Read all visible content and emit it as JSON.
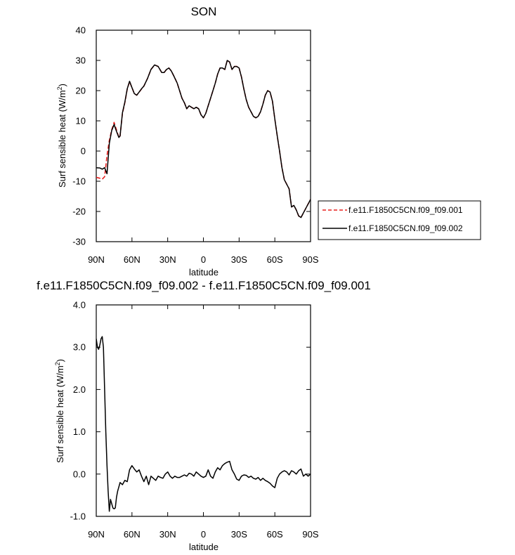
{
  "chart_data": [
    {
      "type": "line",
      "title": "SON",
      "xlabel": "latitude",
      "ylabel": "Surf sensible heat (W/m",
      "ylabel_sup": "2",
      "ylabel_tail": ")",
      "xlim": [
        90,
        -90
      ],
      "ylim": [
        -30,
        40
      ],
      "x_ticks": [
        90,
        60,
        30,
        0,
        -30,
        -60,
        -90
      ],
      "x_tick_labels": [
        "90N",
        "60N",
        "30N",
        "0",
        "30S",
        "60S",
        "90S"
      ],
      "y_ticks": [
        -30,
        -20,
        -10,
        0,
        10,
        20,
        30,
        40
      ],
      "y_tick_labels": [
        "-30",
        "-20",
        "-10",
        "0",
        "10",
        "20",
        "30",
        "40"
      ],
      "legend_position": "right",
      "series": [
        {
          "name": "f.e11.F1850C5CN.f09_f09.001",
          "color": "#e8201e",
          "dash": "dashed",
          "x": [
            90,
            87,
            85,
            83,
            81,
            79,
            77,
            75,
            73,
            71,
            70,
            68,
            66,
            64,
            62,
            60,
            58,
            56,
            54,
            52,
            50,
            47,
            44,
            41,
            38,
            35,
            33,
            31,
            29,
            27,
            25,
            22,
            20,
            18,
            16,
            14,
            12,
            10,
            8,
            6,
            4,
            2,
            0,
            -2,
            -4,
            -6,
            -8,
            -10,
            -12,
            -14,
            -16,
            -18,
            -20,
            -22,
            -24,
            -26,
            -28,
            -30,
            -32,
            -34,
            -36,
            -38,
            -40,
            -42,
            -44,
            -46,
            -48,
            -50,
            -52,
            -54,
            -56,
            -58,
            -60,
            -62,
            -64,
            -66,
            -68,
            -70,
            -72,
            -74,
            -76,
            -78,
            -80,
            -82,
            -84,
            -86,
            -88,
            -90
          ],
          "y": [
            -8.7,
            -9.0,
            -9.3,
            -8.5,
            -1.5,
            3.5,
            7.0,
            9.5,
            7.0,
            4.5,
            5.0,
            12.5,
            16.0,
            20.5,
            23.0,
            21.0,
            19.0,
            18.5,
            19.5,
            20.5,
            21.5,
            24.0,
            27.0,
            28.5,
            28.0,
            26.0,
            26.0,
            27.0,
            27.5,
            26.5,
            25.0,
            22.5,
            20.0,
            17.5,
            16.0,
            14.0,
            15.0,
            14.5,
            14.0,
            14.5,
            14.0,
            12.0,
            11.0,
            12.5,
            15.0,
            17.5,
            20.0,
            22.5,
            25.5,
            27.5,
            27.5,
            27.0,
            30.0,
            29.5,
            27.0,
            28.0,
            28.0,
            27.5,
            24.5,
            20.5,
            17.0,
            14.5,
            13.0,
            11.5,
            11.0,
            11.5,
            13.0,
            15.5,
            18.5,
            20.0,
            19.5,
            16.5,
            10.5,
            5.0,
            0.0,
            -5.5,
            -9.5,
            -11.0,
            -12.5,
            -18.5,
            -18.0,
            -19.5,
            -21.5,
            -22.0,
            -20.5,
            -19.0,
            -17.5,
            -16.0
          ]
        },
        {
          "name": "f.e11.F1850C5CN.f09_f09.002",
          "color": "#000000",
          "dash": "solid",
          "x": [
            90,
            87,
            85,
            83,
            81,
            79,
            77,
            75,
            73,
            71,
            70,
            68,
            66,
            64,
            62,
            60,
            58,
            56,
            54,
            52,
            50,
            47,
            44,
            41,
            38,
            35,
            33,
            31,
            29,
            27,
            25,
            22,
            20,
            18,
            16,
            14,
            12,
            10,
            8,
            6,
            4,
            2,
            0,
            -2,
            -4,
            -6,
            -8,
            -10,
            -12,
            -14,
            -16,
            -18,
            -20,
            -22,
            -24,
            -26,
            -28,
            -30,
            -32,
            -34,
            -36,
            -38,
            -40,
            -42,
            -44,
            -46,
            -48,
            -50,
            -52,
            -54,
            -56,
            -58,
            -60,
            -62,
            -64,
            -66,
            -68,
            -70,
            -72,
            -74,
            -76,
            -78,
            -80,
            -82,
            -84,
            -86,
            -88,
            -90
          ],
          "y": [
            -5.5,
            -5.6,
            -6.0,
            -5.5,
            -7.5,
            2.5,
            6.8,
            8.8,
            6.5,
            4.5,
            5.0,
            12.7,
            16.2,
            20.6,
            23.1,
            21.0,
            19.0,
            18.5,
            19.5,
            20.6,
            21.5,
            24.0,
            27.0,
            28.5,
            28.0,
            26.0,
            26.0,
            27.0,
            27.5,
            26.5,
            25.0,
            22.5,
            20.0,
            17.5,
            16.0,
            14.0,
            15.0,
            14.5,
            14.0,
            14.5,
            14.0,
            12.0,
            11.0,
            12.5,
            15.0,
            17.5,
            20.0,
            22.5,
            25.5,
            27.5,
            27.5,
            27.0,
            30.0,
            29.5,
            27.0,
            28.0,
            28.0,
            27.5,
            24.5,
            20.5,
            17.0,
            14.5,
            13.0,
            11.5,
            11.0,
            11.5,
            13.0,
            15.5,
            18.5,
            20.0,
            19.5,
            16.5,
            10.5,
            5.0,
            0.0,
            -5.5,
            -9.5,
            -11.0,
            -12.5,
            -18.5,
            -18.0,
            -19.5,
            -21.5,
            -22.0,
            -20.5,
            -19.0,
            -17.5,
            -16.0
          ]
        }
      ]
    },
    {
      "type": "line",
      "title": "f.e11.F1850C5CN.f09_f09.002 - f.e11.F1850C5CN.f09_f09.001",
      "xlabel": "latitude",
      "ylabel": "Surf sensible heat (W/m",
      "ylabel_sup": "2",
      "ylabel_tail": ")",
      "xlim": [
        90,
        -90
      ],
      "ylim": [
        -1.0,
        4.0
      ],
      "x_ticks": [
        90,
        60,
        30,
        0,
        -30,
        -60,
        -90
      ],
      "x_tick_labels": [
        "90N",
        "60N",
        "30N",
        "0",
        "30S",
        "60S",
        "90S"
      ],
      "y_ticks": [
        -1.0,
        0.0,
        1.0,
        2.0,
        3.0,
        4.0
      ],
      "y_tick_labels": [
        "-1.0",
        "0.0",
        "1.0",
        "2.0",
        "3.0",
        "4.0"
      ],
      "series": [
        {
          "color": "#000000",
          "dash": "solid",
          "x": [
            90,
            89,
            88,
            87,
            86,
            85,
            84,
            83,
            82,
            81,
            80,
            79,
            78,
            77,
            76,
            75,
            74,
            73,
            72,
            71,
            70,
            68,
            66,
            64,
            62,
            60,
            58,
            56,
            54,
            52,
            50,
            48,
            46,
            44,
            42,
            40,
            38,
            36,
            34,
            32,
            30,
            28,
            26,
            24,
            22,
            20,
            18,
            16,
            14,
            12,
            10,
            8,
            6,
            4,
            2,
            0,
            -2,
            -4,
            -6,
            -8,
            -10,
            -12,
            -14,
            -16,
            -18,
            -20,
            -22,
            -24,
            -26,
            -28,
            -30,
            -32,
            -34,
            -36,
            -38,
            -40,
            -42,
            -44,
            -46,
            -48,
            -50,
            -52,
            -54,
            -56,
            -58,
            -60,
            -62,
            -64,
            -66,
            -68,
            -70,
            -72,
            -74,
            -76,
            -78,
            -80,
            -82,
            -84,
            -86,
            -88,
            -90
          ],
          "y": [
            3.2,
            3.0,
            2.95,
            3.05,
            3.2,
            3.25,
            3.0,
            2.0,
            1.0,
            0.2,
            -0.4,
            -0.88,
            -0.6,
            -0.7,
            -0.8,
            -0.82,
            -0.8,
            -0.55,
            -0.4,
            -0.3,
            -0.2,
            -0.25,
            -0.15,
            -0.18,
            0.1,
            0.2,
            0.12,
            0.05,
            0.1,
            -0.05,
            -0.18,
            -0.05,
            -0.25,
            -0.05,
            -0.1,
            -0.15,
            -0.05,
            -0.08,
            -0.1,
            0.0,
            0.05,
            -0.05,
            -0.1,
            -0.05,
            -0.08,
            -0.08,
            -0.05,
            -0.02,
            -0.05,
            0.02,
            0.0,
            -0.05,
            0.05,
            0.0,
            -0.05,
            -0.08,
            -0.05,
            0.1,
            -0.05,
            -0.1,
            0.05,
            0.15,
            0.1,
            0.2,
            0.25,
            0.28,
            0.3,
            0.1,
            0.0,
            -0.12,
            -0.15,
            -0.05,
            -0.02,
            -0.03,
            -0.08,
            -0.05,
            -0.1,
            -0.12,
            -0.08,
            -0.15,
            -0.1,
            -0.15,
            -0.18,
            -0.22,
            -0.28,
            -0.32,
            -0.1,
            0.0,
            0.05,
            0.08,
            0.05,
            -0.02,
            0.08,
            0.05,
            0.0,
            0.08,
            0.12,
            -0.05,
            0.0,
            -0.05,
            0.0
          ]
        }
      ]
    }
  ]
}
